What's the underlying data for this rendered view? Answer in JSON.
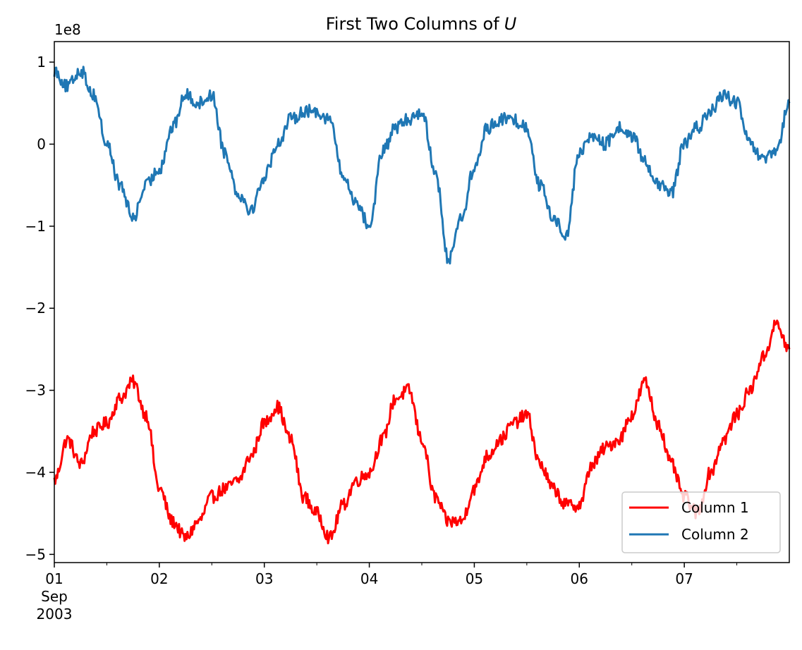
{
  "chart_data": {
    "type": "line",
    "title": "First Two Columns of",
    "title_variable": "U",
    "xlabel": "",
    "ylabel": "",
    "y_offset_label": "1e8",
    "xlim": [
      "2003-09-01T00:00",
      "2003-09-08T00:00"
    ],
    "ylim": [
      -5.1,
      1.25
    ],
    "y_ticks": [
      1,
      0,
      -1,
      -2,
      -3,
      -4,
      -5
    ],
    "y_tick_labels": [
      "1",
      "0",
      "−1",
      "−2",
      "−3",
      "−4",
      "−5"
    ],
    "x_ticks": [
      {
        "date": "2003-09-01",
        "label": "01",
        "sublabels": [
          "Sep",
          "2003"
        ]
      },
      {
        "date": "2003-09-02",
        "label": "02",
        "sublabels": []
      },
      {
        "date": "2003-09-03",
        "label": "03",
        "sublabels": []
      },
      {
        "date": "2003-09-04",
        "label": "04",
        "sublabels": []
      },
      {
        "date": "2003-09-05",
        "label": "05",
        "sublabels": []
      },
      {
        "date": "2003-09-06",
        "label": "06",
        "sublabels": []
      },
      {
        "date": "2003-09-07",
        "label": "07",
        "sublabels": []
      }
    ],
    "grid": false,
    "legend_position": "lower-right",
    "series": [
      {
        "name": "Column 1",
        "color": "#ff0000",
        "x": [
          "2003-09-01T00:00",
          "2003-09-01T03:00",
          "2003-09-01T06:00",
          "2003-09-01T09:00",
          "2003-09-01T12:00",
          "2003-09-01T15:00",
          "2003-09-01T18:00",
          "2003-09-01T21:00",
          "2003-09-02T00:00",
          "2003-09-02T03:00",
          "2003-09-02T06:00",
          "2003-09-02T09:00",
          "2003-09-02T12:00",
          "2003-09-02T15:00",
          "2003-09-02T18:00",
          "2003-09-02T21:00",
          "2003-09-03T00:00",
          "2003-09-03T03:00",
          "2003-09-03T06:00",
          "2003-09-03T09:00",
          "2003-09-03T12:00",
          "2003-09-03T15:00",
          "2003-09-03T18:00",
          "2003-09-03T21:00",
          "2003-09-04T00:00",
          "2003-09-04T03:00",
          "2003-09-04T06:00",
          "2003-09-04T09:00",
          "2003-09-04T12:00",
          "2003-09-04T15:00",
          "2003-09-04T18:00",
          "2003-09-04T21:00",
          "2003-09-05T00:00",
          "2003-09-05T03:00",
          "2003-09-05T06:00",
          "2003-09-05T09:00",
          "2003-09-05T12:00",
          "2003-09-05T15:00",
          "2003-09-05T18:00",
          "2003-09-05T21:00",
          "2003-09-06T00:00",
          "2003-09-06T03:00",
          "2003-09-06T06:00",
          "2003-09-06T09:00",
          "2003-09-06T12:00",
          "2003-09-06T15:00",
          "2003-09-06T18:00",
          "2003-09-06T21:00",
          "2003-09-07T00:00",
          "2003-09-07T03:00",
          "2003-09-07T06:00",
          "2003-09-07T09:00",
          "2003-09-07T12:00",
          "2003-09-07T15:00",
          "2003-09-07T18:00",
          "2003-09-07T21:00",
          "2003-09-08T00:00"
        ],
        "values": [
          -4.1,
          -3.6,
          -3.9,
          -3.5,
          -3.4,
          -3.1,
          -2.9,
          -3.3,
          -4.2,
          -4.6,
          -4.8,
          -4.6,
          -4.3,
          -4.2,
          -4.1,
          -3.8,
          -3.4,
          -3.2,
          -3.6,
          -4.3,
          -4.5,
          -4.8,
          -4.4,
          -4.1,
          -4.0,
          -3.6,
          -3.1,
          -3.0,
          -3.6,
          -4.3,
          -4.6,
          -4.6,
          -4.2,
          -3.8,
          -3.6,
          -3.4,
          -3.3,
          -3.9,
          -4.2,
          -4.4,
          -4.4,
          -3.9,
          -3.7,
          -3.6,
          -3.3,
          -2.9,
          -3.4,
          -3.9,
          -4.3,
          -4.5,
          -4.0,
          -3.6,
          -3.3,
          -3.0,
          -2.6,
          -2.2,
          -2.5
        ]
      },
      {
        "name": "Column 2",
        "color": "#1f77b4",
        "x": [
          "2003-09-01T00:00",
          "2003-09-01T03:00",
          "2003-09-01T06:00",
          "2003-09-01T09:00",
          "2003-09-01T12:00",
          "2003-09-01T15:00",
          "2003-09-01T18:00",
          "2003-09-01T21:00",
          "2003-09-02T00:00",
          "2003-09-02T03:00",
          "2003-09-02T06:00",
          "2003-09-02T09:00",
          "2003-09-02T12:00",
          "2003-09-02T15:00",
          "2003-09-02T18:00",
          "2003-09-02T21:00",
          "2003-09-03T00:00",
          "2003-09-03T03:00",
          "2003-09-03T06:00",
          "2003-09-03T09:00",
          "2003-09-03T12:00",
          "2003-09-03T15:00",
          "2003-09-03T18:00",
          "2003-09-03T21:00",
          "2003-09-04T00:00",
          "2003-09-04T03:00",
          "2003-09-04T06:00",
          "2003-09-04T09:00",
          "2003-09-04T12:00",
          "2003-09-04T15:00",
          "2003-09-04T18:00",
          "2003-09-04T21:00",
          "2003-09-05T00:00",
          "2003-09-05T03:00",
          "2003-09-05T06:00",
          "2003-09-05T09:00",
          "2003-09-05T12:00",
          "2003-09-05T15:00",
          "2003-09-05T18:00",
          "2003-09-05T21:00",
          "2003-09-06T00:00",
          "2003-09-06T03:00",
          "2003-09-06T06:00",
          "2003-09-06T09:00",
          "2003-09-06T12:00",
          "2003-09-06T15:00",
          "2003-09-06T18:00",
          "2003-09-06T21:00",
          "2003-09-07T00:00",
          "2003-09-07T03:00",
          "2003-09-07T06:00",
          "2003-09-07T09:00",
          "2003-09-07T12:00",
          "2003-09-07T15:00",
          "2003-09-07T18:00",
          "2003-09-07T21:00",
          "2003-09-08T00:00"
        ],
        "values": [
          0.9,
          0.7,
          0.9,
          0.6,
          0.0,
          -0.5,
          -0.9,
          -0.5,
          -0.3,
          0.2,
          0.6,
          0.5,
          0.6,
          -0.1,
          -0.6,
          -0.8,
          -0.4,
          0.0,
          0.3,
          0.4,
          0.4,
          0.3,
          -0.4,
          -0.7,
          -1.0,
          -0.1,
          0.2,
          0.3,
          0.4,
          -0.3,
          -1.4,
          -0.9,
          -0.3,
          0.2,
          0.3,
          0.3,
          0.2,
          -0.5,
          -0.9,
          -1.1,
          -0.1,
          0.1,
          0.0,
          0.2,
          0.1,
          -0.2,
          -0.5,
          -0.6,
          0.0,
          0.2,
          0.4,
          0.6,
          0.5,
          0.0,
          -0.2,
          -0.1,
          0.5
        ]
      }
    ]
  }
}
